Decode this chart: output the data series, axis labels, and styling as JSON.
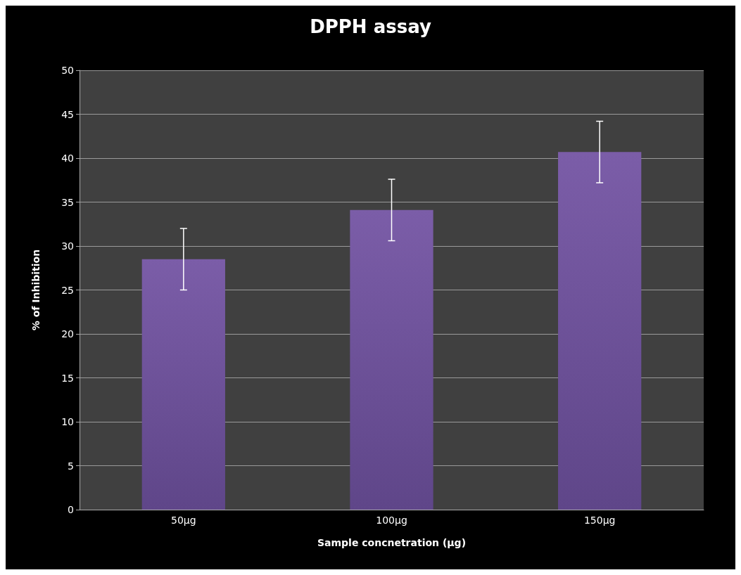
{
  "chart_data": {
    "type": "bar",
    "title": "DPPH assay",
    "xlabel": "Sample concnetration (µg)",
    "ylabel": "% of Inhibition",
    "categories": [
      "50µg",
      "100µg",
      "150µg"
    ],
    "values": [
      28.5,
      34.1,
      40.7
    ],
    "errors": [
      3.5,
      3.5,
      3.5
    ],
    "color": "#7b5da8",
    "ylim": [
      0,
      50
    ],
    "yticks": [
      0,
      5,
      10,
      15,
      20,
      25,
      30,
      35,
      40,
      45,
      50
    ],
    "grid": "y"
  }
}
